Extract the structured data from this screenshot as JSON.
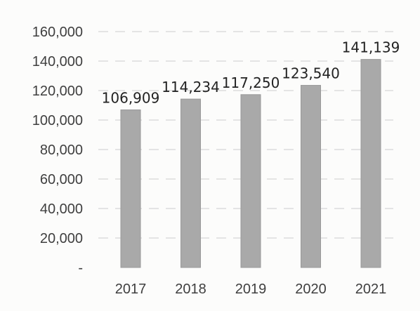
{
  "chart_data": {
    "type": "bar",
    "categories": [
      "2017",
      "2018",
      "2019",
      "2020",
      "2021"
    ],
    "values": [
      106909,
      114234,
      117250,
      123540,
      141139
    ],
    "data_labels": [
      "106,909",
      "114,234",
      "117,250",
      "123,540",
      "141,139"
    ],
    "y_tick_labels": [
      "-",
      "20,000",
      "40,000",
      "60,000",
      "80,000",
      "100,000",
      "120,000",
      "140,000",
      "160,000"
    ],
    "ylim": [
      0,
      160000
    ],
    "title": "",
    "xlabel": "",
    "ylabel": "",
    "grid": true,
    "legend": "none",
    "colors": {
      "bar": "#a9a9a9",
      "grid": "#d6d6d6",
      "text": "#3f3f3f"
    }
  }
}
